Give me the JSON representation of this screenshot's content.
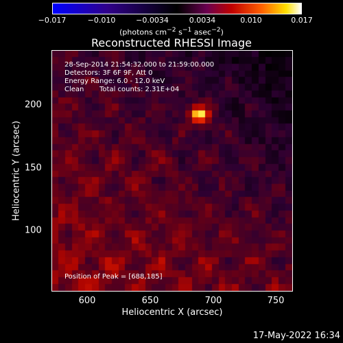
{
  "colorbar": {
    "tick_labels": [
      "−0.017",
      "−0.010",
      "−0.0034",
      "0.0034",
      "0.010",
      "0.017"
    ],
    "min": -0.017,
    "max": 0.017,
    "colors": [
      "#0000ff",
      "#20009a",
      "#000000",
      "#5a0060",
      "#c00000",
      "#ff6000",
      "#ffe800",
      "#ffffff"
    ]
  },
  "colorbar_label": {
    "pre": "(photons cm",
    "sup1": "−2",
    "mid1": " s",
    "sup2": "−1",
    "mid2": " asec",
    "sup3": "−2",
    "post": ")"
  },
  "title": "Reconstructed RHESSI Image",
  "info": {
    "time_range": "28-Sep-2014 21:54:32.000 to 21:59:00.000",
    "detectors": "Detectors: 3F 6F 9F, Att 0",
    "energy": "Energy Range: 6.0 - 12.0 keV",
    "algorithm": "Clean",
    "counts": "Total counts: 2.31E+04",
    "peak": "Position of Peak = [688,185]"
  },
  "footer": {
    "timestamp": "17-May-2022 16:34"
  },
  "chart_data": {
    "type": "heatmap",
    "title": "Reconstructed RHESSI Image",
    "xlabel": "Heliocentric X (arcsec)",
    "ylabel": "Heliocentric Y (arcsec)",
    "xlim": [
      570,
      762
    ],
    "ylim": [
      44,
      236
    ],
    "xticks": [
      600,
      650,
      700,
      750
    ],
    "yticks": [
      100,
      150,
      200
    ],
    "peak": {
      "x": 688,
      "y": 185
    },
    "colorbar_range": [
      -0.017,
      0.017
    ]
  }
}
